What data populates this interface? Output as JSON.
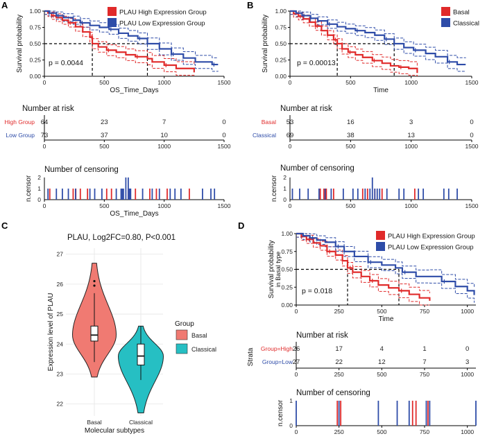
{
  "panel_labels": [
    "A",
    "B",
    "C",
    "D"
  ],
  "colors": {
    "high": "#E02A2A",
    "low": "#2E4CA8",
    "basal_fill": "#F07A72",
    "classical_fill": "#26BFC3",
    "grid": "#E5E5E5"
  },
  "chart_data": [
    {
      "id": "A_km",
      "type": "line",
      "title": "",
      "xlabel": "OS_Time_Days",
      "ylabel": "Survival probability",
      "xlim": [
        0,
        1500
      ],
      "ylim": [
        0,
        1
      ],
      "xticks": [
        "0",
        "500",
        "1000",
        "1500"
      ],
      "yticks": [
        "0.00",
        "0.25",
        "0.50",
        "0.75",
        "1.00"
      ],
      "pvalue": "p = 0.0044",
      "median_times": [
        400,
        860
      ],
      "series": [
        {
          "name": "PLAU High Expression Group",
          "color": "#E02A2A",
          "x": [
            0,
            30,
            60,
            100,
            150,
            200,
            260,
            320,
            380,
            400,
            450,
            520,
            600,
            680,
            760,
            860,
            900,
            1000,
            1100,
            1250
          ],
          "y": [
            1.0,
            0.97,
            0.93,
            0.9,
            0.86,
            0.82,
            0.76,
            0.68,
            0.6,
            0.5,
            0.45,
            0.4,
            0.37,
            0.33,
            0.3,
            0.27,
            0.22,
            0.17,
            0.12,
            0.06
          ]
        },
        {
          "name": "PLAU Low Expression Group",
          "color": "#2E4CA8",
          "x": [
            0,
            40,
            100,
            160,
            240,
            300,
            380,
            460,
            540,
            620,
            700,
            780,
            860,
            960,
            1060,
            1160,
            1260,
            1400,
            1450
          ],
          "y": [
            1.0,
            0.97,
            0.93,
            0.9,
            0.86,
            0.82,
            0.78,
            0.75,
            0.72,
            0.66,
            0.62,
            0.58,
            0.5,
            0.42,
            0.34,
            0.28,
            0.22,
            0.18,
            0.18
          ]
        }
      ]
    },
    {
      "id": "A_risk",
      "type": "table",
      "title": "Number at risk",
      "xlabel": "OS_Time_Days",
      "time_points": [
        0,
        500,
        1000,
        1500
      ],
      "xticks": [
        "0",
        "500",
        "1000",
        "1500"
      ],
      "rows": [
        {
          "label": "High Group",
          "color": "#E02A2A",
          "values": [
            "64",
            "23",
            "7",
            "0"
          ]
        },
        {
          "label": "Low Group",
          "color": "#2E4CA8",
          "values": [
            "73",
            "37",
            "10",
            "0"
          ]
        }
      ]
    },
    {
      "id": "A_cens",
      "type": "bar",
      "title": "Number of censoring",
      "xlabel": "OS_Time_Days",
      "ylabel": "n.censor",
      "xlim": [
        0,
        1500
      ],
      "ylim": [
        0,
        2
      ],
      "xticks": [
        "0",
        "500",
        "1000",
        "1500"
      ],
      "yticks": [
        "0",
        "1",
        "2"
      ],
      "series": [
        {
          "name": "High",
          "color": "#E02A2A",
          "x": [
            45,
            240,
            262,
            300,
            360,
            520,
            560,
            700,
            760,
            880,
            935,
            1025,
            1210
          ],
          "y": [
            1,
            1,
            1,
            1,
            1,
            1,
            1,
            1,
            1,
            1,
            1,
            1,
            1
          ]
        },
        {
          "name": "Low",
          "color": "#2E4CA8",
          "x": [
            30,
            100,
            150,
            200,
            260,
            380,
            420,
            480,
            600,
            640,
            650,
            660,
            680,
            700,
            710,
            720,
            820,
            900,
            960,
            1050,
            1090,
            1140,
            1320,
            1390,
            1420
          ],
          "y": [
            1,
            1,
            1,
            1,
            1,
            1,
            1,
            1,
            1,
            1,
            1,
            1,
            2,
            2,
            1,
            1,
            1,
            1,
            1,
            1,
            1,
            1,
            1,
            1,
            1
          ]
        }
      ]
    },
    {
      "id": "B_km",
      "type": "line",
      "title": "",
      "xlabel": "Time",
      "ylabel": "Survival probability",
      "xlim": [
        0,
        1500
      ],
      "ylim": [
        0,
        1
      ],
      "xticks": [
        "0",
        "500",
        "1000",
        "1500"
      ],
      "yticks": [
        "0.00",
        "0.25",
        "0.50",
        "0.75",
        "1.00"
      ],
      "pvalue": "p = 0.00013",
      "median_times": [
        390,
        860
      ],
      "series": [
        {
          "name": "Basal",
          "color": "#E02A2A",
          "x": [
            0,
            30,
            70,
            110,
            160,
            210,
            260,
            310,
            360,
            390,
            430,
            480,
            540,
            600,
            680,
            760,
            830,
            900,
            980,
            1050
          ],
          "y": [
            1.0,
            0.96,
            0.92,
            0.88,
            0.83,
            0.77,
            0.7,
            0.63,
            0.56,
            0.5,
            0.42,
            0.37,
            0.33,
            0.29,
            0.24,
            0.2,
            0.16,
            0.14,
            0.12,
            0.05
          ]
        },
        {
          "name": "Classical",
          "color": "#2E4CA8",
          "x": [
            0,
            50,
            100,
            170,
            230,
            310,
            390,
            460,
            540,
            620,
            700,
            780,
            860,
            940,
            1020,
            1120,
            1200,
            1300,
            1380,
            1450
          ],
          "y": [
            1.0,
            0.97,
            0.93,
            0.89,
            0.85,
            0.8,
            0.76,
            0.73,
            0.7,
            0.67,
            0.63,
            0.57,
            0.5,
            0.44,
            0.4,
            0.35,
            0.3,
            0.22,
            0.18,
            0.18
          ]
        }
      ]
    },
    {
      "id": "B_risk",
      "type": "table",
      "title": "Number at risk",
      "xlabel": "Time",
      "time_points": [
        0,
        500,
        1000,
        1500
      ],
      "xticks": [
        "0",
        "500",
        "1000",
        "1500"
      ],
      "rows": [
        {
          "label": "Basal",
          "color": "#E02A2A",
          "values": [
            "53",
            "16",
            "3",
            "0"
          ]
        },
        {
          "label": "Classical",
          "color": "#2E4CA8",
          "values": [
            "69",
            "38",
            "13",
            "0"
          ]
        }
      ]
    },
    {
      "id": "B_cens",
      "type": "bar",
      "title": "Number of censoring",
      "xlabel": "Time",
      "ylabel": "n.censor",
      "xlim": [
        0,
        1500
      ],
      "ylim": [
        0,
        2
      ],
      "xticks": [
        "0",
        "500",
        "1000",
        "1500"
      ],
      "yticks": [
        "0",
        "1",
        "2"
      ],
      "series": [
        {
          "name": "Basal",
          "color": "#E02A2A",
          "x": [
            250,
            280,
            300,
            360,
            600,
            640,
            700,
            760,
            1030
          ],
          "y": [
            1,
            1,
            1,
            1,
            1,
            1,
            1,
            1,
            1
          ]
        },
        {
          "name": "Classical",
          "color": "#2E4CA8",
          "x": [
            20,
            80,
            150,
            240,
            290,
            340,
            440,
            520,
            560,
            620,
            660,
            680,
            700,
            720,
            740,
            800,
            900,
            940,
            1060,
            1100,
            1270,
            1310,
            1380
          ],
          "y": [
            1,
            1,
            1,
            1,
            1,
            1,
            1,
            1,
            1,
            1,
            1,
            2,
            1,
            1,
            1,
            1,
            1,
            1,
            1,
            1,
            1,
            1,
            1
          ]
        }
      ]
    },
    {
      "id": "C_violin",
      "type": "bar",
      "title": "PLAU, Log2FC=0.80, P<0.001",
      "xlabel": "Molecular subtypes",
      "ylabel": "Expression level of PLAU",
      "ylim": [
        21.6,
        27.2
      ],
      "yticks": [
        "22",
        "23",
        "24",
        "25",
        "26",
        "27"
      ],
      "categories": [
        "Basal",
        "Classical"
      ],
      "legend_title": "Group",
      "groups": [
        {
          "name": "Basal",
          "min": 22.9,
          "q1": 24.1,
          "median": 24.3,
          "q3": 24.6,
          "max": 26.7,
          "whisker_low": 23.4,
          "whisker_high": 25.7
        },
        {
          "name": "Classical",
          "min": 21.7,
          "q1": 23.3,
          "median": 23.6,
          "q3": 24.0,
          "max": 24.6,
          "whisker_low": 22.8,
          "whisker_high": 24.6
        }
      ]
    },
    {
      "id": "D_km",
      "type": "line",
      "title": "",
      "xlabel": "Time",
      "ylabel": "Survival probability",
      "ylabel2": "in Basal type",
      "xlim": [
        0,
        1050
      ],
      "ylim": [
        0,
        1
      ],
      "xticks": [
        "0",
        "250",
        "500",
        "750",
        "1000"
      ],
      "yticks": [
        "0.00",
        "0.25",
        "0.50",
        "0.75",
        "1.00"
      ],
      "pvalue": "p = 0.018",
      "median_times": [
        300,
        600
      ],
      "series": [
        {
          "name": "PLAU High Expression Group",
          "color": "#E02A2A",
          "x": [
            0,
            30,
            60,
            100,
            140,
            180,
            230,
            270,
            300,
            330,
            380,
            430,
            480,
            540,
            600,
            660,
            720,
            780
          ],
          "y": [
            1.0,
            0.96,
            0.92,
            0.87,
            0.83,
            0.75,
            0.7,
            0.62,
            0.52,
            0.46,
            0.4,
            0.34,
            0.28,
            0.24,
            0.2,
            0.15,
            0.1,
            0.06
          ]
        },
        {
          "name": "PLAU Low Expression Group",
          "color": "#2E4CA8",
          "x": [
            0,
            40,
            80,
            120,
            170,
            230,
            280,
            340,
            420,
            500,
            580,
            620,
            700,
            780,
            850,
            930,
            1000,
            1040
          ],
          "y": [
            1.0,
            0.97,
            0.94,
            0.91,
            0.88,
            0.82,
            0.75,
            0.68,
            0.6,
            0.56,
            0.52,
            0.46,
            0.4,
            0.4,
            0.33,
            0.26,
            0.2,
            0.14
          ]
        }
      ]
    },
    {
      "id": "D_risk",
      "type": "table",
      "title": "Number at risk",
      "xlabel": "Time",
      "ylabel": "Strata",
      "time_points": [
        0,
        250,
        500,
        750,
        1000
      ],
      "xticks": [
        "0",
        "250",
        "500",
        "750",
        "1000"
      ],
      "rows": [
        {
          "label": "Group=High",
          "color": "#E02A2A",
          "values": [
            "26",
            "17",
            "4",
            "1",
            "0"
          ]
        },
        {
          "label": "Group=Low",
          "color": "#2E4CA8",
          "values": [
            "27",
            "22",
            "12",
            "7",
            "3"
          ]
        }
      ]
    },
    {
      "id": "D_cens",
      "type": "bar",
      "title": "Number of censoring",
      "xlabel": "Time",
      "ylabel": "n.censor",
      "xlim": [
        0,
        1050
      ],
      "ylim": [
        0,
        1
      ],
      "xticks": [
        "0",
        "250",
        "500",
        "750",
        "1000"
      ],
      "yticks": [
        "0",
        "1"
      ],
      "series": [
        {
          "name": "High",
          "color": "#E02A2A",
          "x": [
            240,
            260,
            680,
            700,
            770
          ],
          "y": [
            1,
            1,
            1,
            1,
            1
          ]
        },
        {
          "name": "Low",
          "color": "#2E4CA8",
          "x": [
            0,
            250,
            480,
            590,
            660,
            760,
            780,
            1050
          ],
          "y": [
            1,
            1,
            1,
            1,
            1,
            1,
            1,
            1
          ]
        }
      ]
    }
  ]
}
